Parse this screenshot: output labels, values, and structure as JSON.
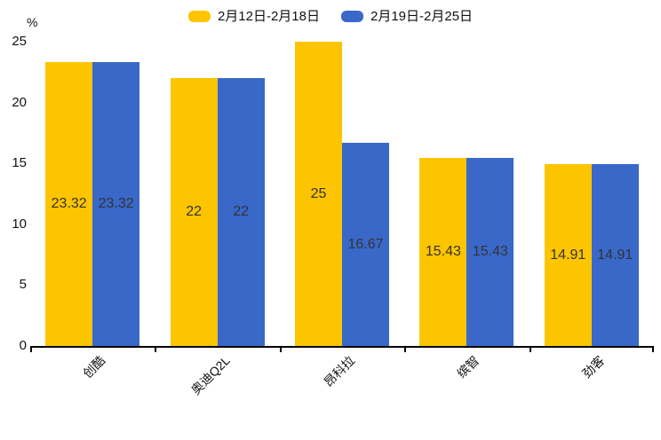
{
  "chart_data": {
    "type": "bar",
    "title": "",
    "xlabel": "",
    "ylabel": "%",
    "categories": [
      "创酷",
      "奥迪Q2L",
      "昂科拉",
      "缤智",
      "劲客"
    ],
    "series": [
      {
        "name": "2月12日-2月18日",
        "color": "#FDC500",
        "values": [
          23.32,
          22,
          25,
          15.43,
          14.91
        ]
      },
      {
        "name": "2月19日-2月25日",
        "color": "#3968C9",
        "values": [
          23.32,
          22,
          16.67,
          15.43,
          14.91
        ]
      }
    ],
    "value_labels": [
      [
        "23.32",
        "22",
        "25",
        "15.43",
        "14.91"
      ],
      [
        "23.32",
        "22",
        "16.67",
        "15.43",
        "14.91"
      ]
    ],
    "ylim": [
      0,
      25
    ],
    "y_ticks": [
      "0",
      "5",
      "10",
      "15",
      "20",
      "25"
    ],
    "grid": false,
    "legend_position": "top",
    "bar_label_color": "#333333",
    "axis_color": "#000000"
  }
}
